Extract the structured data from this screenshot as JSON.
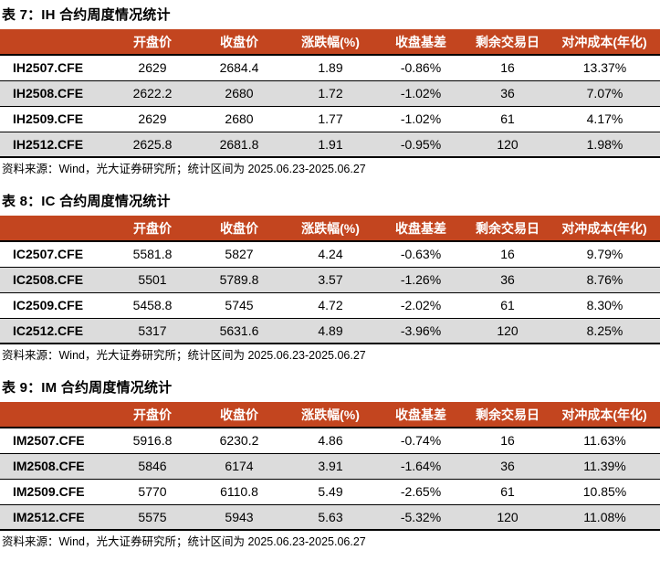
{
  "colors": {
    "header_bg": "#C3451F",
    "header_text": "#FFFFFF",
    "alt_row_bg": "#DCDCDC",
    "border": "#000000",
    "text": "#000000"
  },
  "tables": [
    {
      "title": "表 7：IH 合约周度情况统计",
      "columns": [
        "",
        "开盘价",
        "收盘价",
        "涨跌幅(%)",
        "收盘基差",
        "剩余交易日",
        "对冲成本(年化)"
      ],
      "rows": [
        [
          "IH2507.CFE",
          "2629",
          "2684.4",
          "1.89",
          "-0.86%",
          "16",
          "13.37%"
        ],
        [
          "IH2508.CFE",
          "2622.2",
          "2680",
          "1.72",
          "-1.02%",
          "36",
          "7.07%"
        ],
        [
          "IH2509.CFE",
          "2629",
          "2680",
          "1.77",
          "-1.02%",
          "61",
          "4.17%"
        ],
        [
          "IH2512.CFE",
          "2625.8",
          "2681.8",
          "1.91",
          "-0.95%",
          "120",
          "1.98%"
        ]
      ],
      "source": "资料来源：Wind，光大证券研究所；统计区间为 2025.06.23-2025.06.27"
    },
    {
      "title": "表 8：IC 合约周度情况统计",
      "columns": [
        "",
        "开盘价",
        "收盘价",
        "涨跌幅(%)",
        "收盘基差",
        "剩余交易日",
        "对冲成本(年化)"
      ],
      "rows": [
        [
          "IC2507.CFE",
          "5581.8",
          "5827",
          "4.24",
          "-0.63%",
          "16",
          "9.79%"
        ],
        [
          "IC2508.CFE",
          "5501",
          "5789.8",
          "3.57",
          "-1.26%",
          "36",
          "8.76%"
        ],
        [
          "IC2509.CFE",
          "5458.8",
          "5745",
          "4.72",
          "-2.02%",
          "61",
          "8.30%"
        ],
        [
          "IC2512.CFE",
          "5317",
          "5631.6",
          "4.89",
          "-3.96%",
          "120",
          "8.25%"
        ]
      ],
      "source": "资料来源：Wind，光大证券研究所；统计区间为 2025.06.23-2025.06.27"
    },
    {
      "title": "表 9：IM 合约周度情况统计",
      "columns": [
        "",
        "开盘价",
        "收盘价",
        "涨跌幅(%)",
        "收盘基差",
        "剩余交易日",
        "对冲成本(年化)"
      ],
      "rows": [
        [
          "IM2507.CFE",
          "5916.8",
          "6230.2",
          "4.86",
          "-0.74%",
          "16",
          "11.63%"
        ],
        [
          "IM2508.CFE",
          "5846",
          "6174",
          "3.91",
          "-1.64%",
          "36",
          "11.39%"
        ],
        [
          "IM2509.CFE",
          "5770",
          "6110.8",
          "5.49",
          "-2.65%",
          "61",
          "10.85%"
        ],
        [
          "IM2512.CFE",
          "5575",
          "5943",
          "5.63",
          "-5.32%",
          "120",
          "11.08%"
        ]
      ],
      "source": "资料来源：Wind，光大证券研究所；统计区间为 2025.06.23-2025.06.27"
    }
  ]
}
